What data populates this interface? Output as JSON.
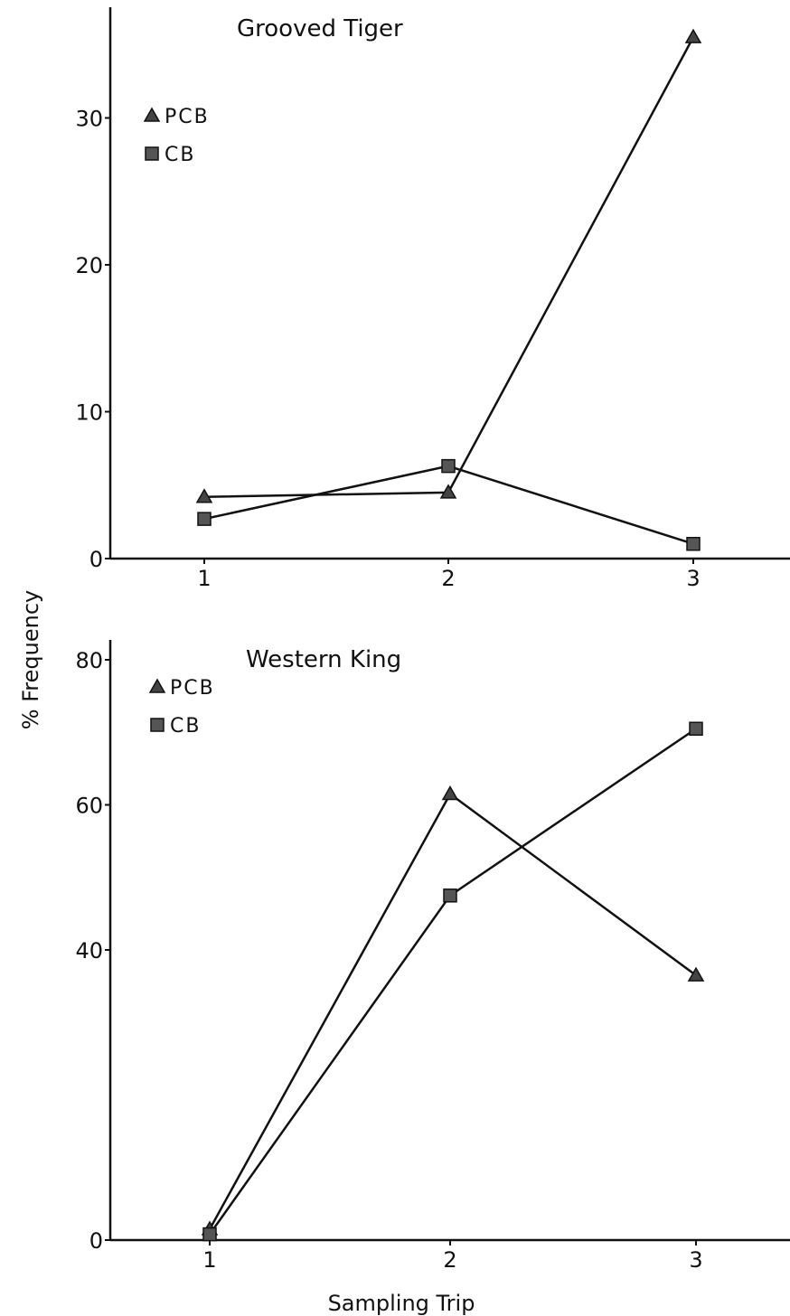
{
  "chart_data": [
    {
      "type": "line",
      "title": "Grooved Tiger",
      "xlabel": "",
      "ylabel": "",
      "categories": [
        "1",
        "2",
        "3"
      ],
      "x": [
        1,
        2,
        3
      ],
      "xlim": [
        0.6,
        3.4
      ],
      "ylim": [
        0,
        37
      ],
      "yticks": [
        0,
        10,
        20,
        30
      ],
      "ytick_labels": [
        "0",
        "10",
        "20",
        "30"
      ],
      "grid": false,
      "legend_position": "top-left",
      "series": [
        {
          "name": "PCB",
          "marker": "triangle",
          "values": [
            4.2,
            4.5,
            35.5
          ]
        },
        {
          "name": "CB",
          "marker": "square",
          "values": [
            2.7,
            6.3,
            1.0
          ]
        }
      ]
    },
    {
      "type": "line",
      "title": "Western King",
      "xlabel": "Sampling Trip",
      "ylabel": "% Frequency",
      "categories": [
        "1",
        "2",
        "3"
      ],
      "x": [
        1,
        2,
        3
      ],
      "xlim": [
        0.6,
        3.4
      ],
      "ylim": [
        0,
        82
      ],
      "yticks": [
        0,
        40,
        60,
        80
      ],
      "ytick_labels": [
        "0",
        "40",
        "60",
        "80"
      ],
      "grid": false,
      "legend_position": "top-left",
      "series": [
        {
          "name": "PCB",
          "marker": "triangle",
          "values": [
            1.5,
            61.5,
            36.5
          ]
        },
        {
          "name": "CB",
          "marker": "square",
          "values": [
            0.8,
            47.5,
            70.5
          ]
        }
      ]
    }
  ]
}
